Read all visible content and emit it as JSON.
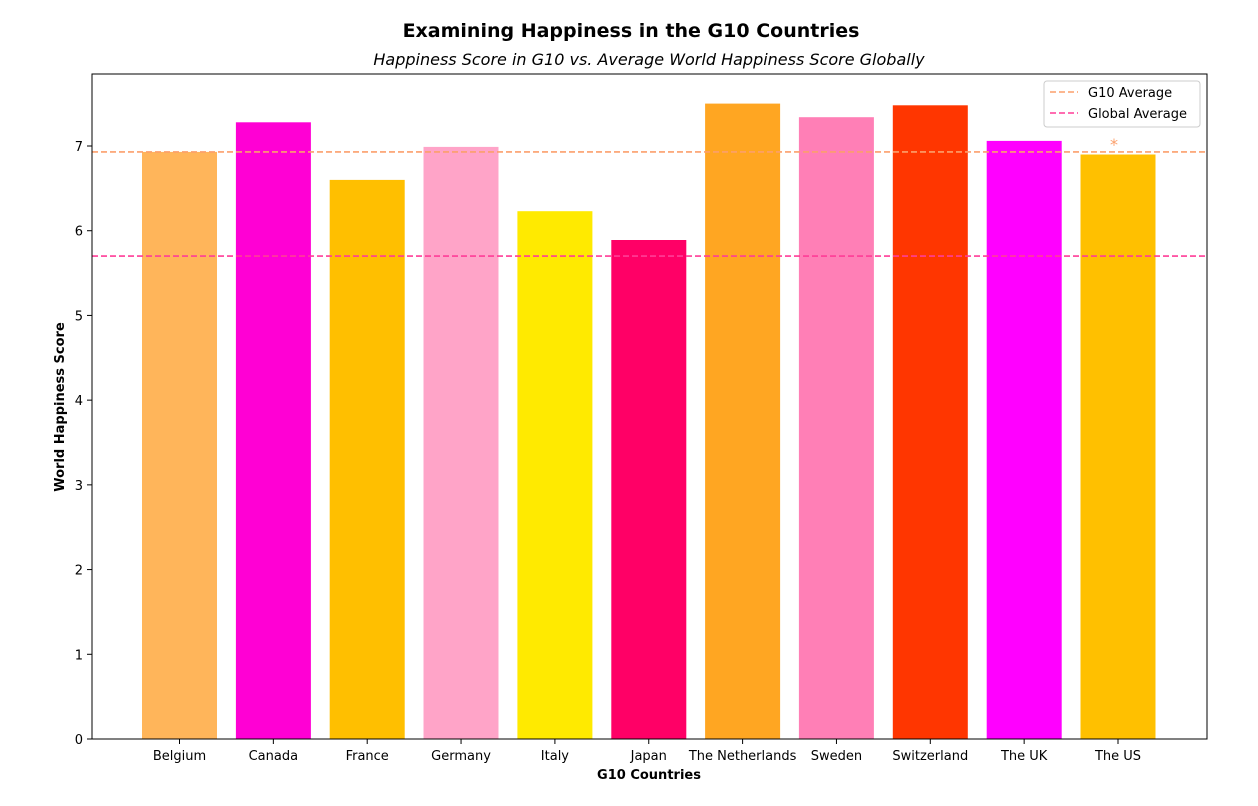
{
  "chart_data": {
    "type": "bar",
    "title": "Examining Happiness in the G10 Countries",
    "subtitle": "Happiness Score in G10 vs. Average World Happiness Score Globally",
    "xlabel": "G10 Countries",
    "ylabel": "World Happiness Score",
    "categories": [
      "Belgium",
      "Canada",
      "France",
      "Germany",
      "Italy",
      "Japan",
      "The Netherlands",
      "Sweden",
      "Switzerland",
      "The UK",
      "The US"
    ],
    "values": [
      6.93,
      7.28,
      6.6,
      6.99,
      6.23,
      5.89,
      7.5,
      7.34,
      7.48,
      7.06,
      6.9
    ],
    "bar_colors": [
      "#ffb55a",
      "#ff00d4",
      "#ffbf00",
      "#ffa4c8",
      "#ffea00",
      "#ff0066",
      "#ffa622",
      "#ff7fb6",
      "#ff3600",
      "#ff00ff",
      "#ffc000"
    ],
    "ylim": [
      0,
      7.85
    ],
    "yticks": [
      0,
      1,
      2,
      3,
      4,
      5,
      6,
      7
    ],
    "reference_lines": [
      {
        "name": "G10 Average",
        "value": 6.93,
        "color": "#fc9f6b",
        "style": "dashed"
      },
      {
        "name": "Global Average",
        "value": 5.7,
        "color": "#ff3d97",
        "style": "dashed"
      }
    ],
    "annotations": [
      {
        "text": "*",
        "category": "The US",
        "value": 7.06,
        "color": "#fc9f6b"
      }
    ],
    "legend": {
      "position": "top-right"
    },
    "grid": false
  }
}
